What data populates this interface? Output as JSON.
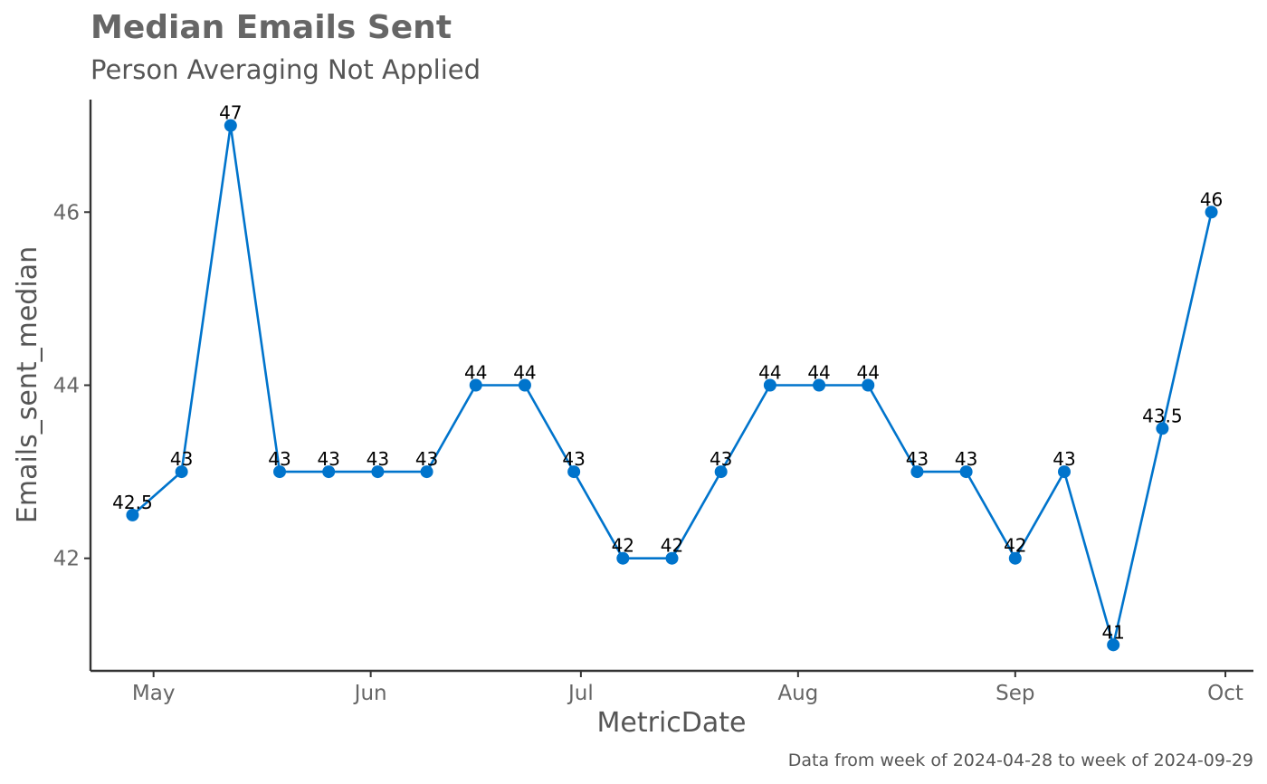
{
  "chart_data": {
    "type": "line",
    "title": "Median Emails Sent",
    "subtitle": "Person Averaging Not Applied",
    "xlabel": "MetricDate",
    "ylabel": "Emails_sent_median",
    "caption": "Data from week of 2024-04-28 to week of 2024-09-29",
    "x": [
      "2024-04-28",
      "2024-05-05",
      "2024-05-12",
      "2024-05-19",
      "2024-05-26",
      "2024-06-02",
      "2024-06-09",
      "2024-06-16",
      "2024-06-23",
      "2024-06-30",
      "2024-07-07",
      "2024-07-14",
      "2024-07-21",
      "2024-07-28",
      "2024-08-04",
      "2024-08-11",
      "2024-08-18",
      "2024-08-25",
      "2024-09-01",
      "2024-09-08",
      "2024-09-15",
      "2024-09-22",
      "2024-09-29"
    ],
    "values": [
      42.5,
      43,
      47,
      43,
      43,
      43,
      43,
      44,
      44,
      43,
      42,
      42,
      43,
      44,
      44,
      44,
      43,
      43,
      42,
      43,
      41,
      43.5,
      46
    ],
    "data_labels": [
      "42.5",
      "43",
      "47",
      "43",
      "43",
      "43",
      "43",
      "44",
      "44",
      "43",
      "42",
      "42",
      "43",
      "44",
      "44",
      "44",
      "43",
      "43",
      "42",
      "43",
      "41",
      "43.5",
      "46"
    ],
    "x_ticks": [
      {
        "date": "2024-05-01",
        "label": "May"
      },
      {
        "date": "2024-06-01",
        "label": "Jun"
      },
      {
        "date": "2024-07-01",
        "label": "Jul"
      },
      {
        "date": "2024-08-01",
        "label": "Aug"
      },
      {
        "date": "2024-09-01",
        "label": "Sep"
      },
      {
        "date": "2024-10-01",
        "label": "Oct"
      }
    ],
    "y_ticks": [
      42,
      44,
      46
    ],
    "xlim": [
      "2024-04-22",
      "2024-10-05"
    ],
    "ylim": [
      40.7,
      47.3
    ],
    "color": "#0074cc",
    "grid": false,
    "legend": "none"
  }
}
